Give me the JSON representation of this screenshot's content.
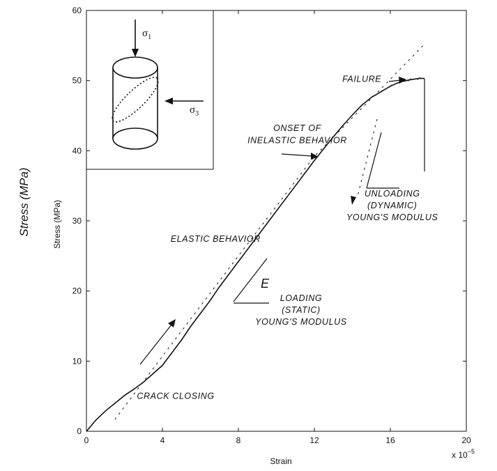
{
  "big_ylabel": "Stress (MPa)",
  "chart_data": {
    "type": "line",
    "title": "",
    "xlabel": "Strain",
    "ylabel": "Stress (MPa)",
    "x_multiplier": "x 10",
    "x_multiplier_exp": "−5",
    "xlim": [
      0,
      20
    ],
    "ylim": [
      0,
      60
    ],
    "xticks": [
      0,
      4,
      8,
      12,
      16,
      20
    ],
    "yticks": [
      0,
      10,
      20,
      30,
      40,
      50,
      60
    ],
    "grid": false,
    "series": [
      {
        "style": "solid-noisy",
        "x": [
          0,
          0.5,
          1,
          1.5,
          2,
          2.5,
          3,
          3.5,
          4,
          4.5,
          5,
          5.5,
          6,
          6.5,
          7,
          7.5,
          8,
          8.5,
          9,
          9.5,
          10,
          10.5,
          11,
          11.5,
          12,
          12.5,
          13,
          13.5,
          14,
          14.5,
          15,
          15.5,
          16,
          16.5,
          17,
          17.5,
          17.8
        ],
        "y": [
          0,
          1.6,
          2.9,
          4.0,
          5.1,
          6.0,
          7.0,
          8.2,
          9.4,
          11.2,
          13.0,
          15.0,
          16.8,
          18.6,
          20.6,
          22.4,
          24.2,
          26.0,
          27.8,
          29.6,
          31.4,
          33.2,
          35.0,
          36.8,
          38.6,
          40.3,
          42.0,
          43.6,
          45.1,
          46.5,
          47.6,
          48.4,
          49.2,
          49.8,
          50.1,
          50.3,
          50.3
        ]
      },
      {
        "style": "dashed",
        "x": [
          1.5,
          4,
          8,
          12,
          16,
          17.8
        ],
        "y": [
          1.7,
          10.7,
          25.0,
          39.2,
          50.2,
          55.2
        ]
      },
      {
        "style": "dashed",
        "x": [
          15.3,
          14.3
        ],
        "y": [
          44.5,
          33.8
        ]
      }
    ],
    "annotations": [
      {
        "text": "ELASTIC BEHAVIOR",
        "x": 6.8,
        "y": 27.0
      },
      {
        "text": "CRACK CLOSING",
        "x": 4.7,
        "y": 4.6
      },
      {
        "text": "ONSET OF",
        "x": 11.1,
        "y": 42.8
      },
      {
        "text": "INELASTIC BEHAVIOR",
        "x": 11.1,
        "y": 41.1
      },
      {
        "text": "FAILURE",
        "x": 14.5,
        "y": 49.8
      },
      {
        "text": "UNLOADING",
        "x": 16.1,
        "y": 33.5
      },
      {
        "text": "(DYNAMIC)",
        "x": 16.1,
        "y": 31.8
      },
      {
        "text": "YOUNG'S MODULUS",
        "x": 16.1,
        "y": 30.1
      },
      {
        "text": "LOADING",
        "x": 11.3,
        "y": 18.6
      },
      {
        "text": "(STATIC)",
        "x": 11.3,
        "y": 16.9
      },
      {
        "text": "YOUNG'S MODULUS",
        "x": 11.3,
        "y": 15.2
      }
    ],
    "modulus_symbol": "E",
    "inset": {
      "sigma1": "σ",
      "sigma1_sub": "1",
      "sigma3": "σ",
      "sigma3_sub": "3"
    }
  }
}
